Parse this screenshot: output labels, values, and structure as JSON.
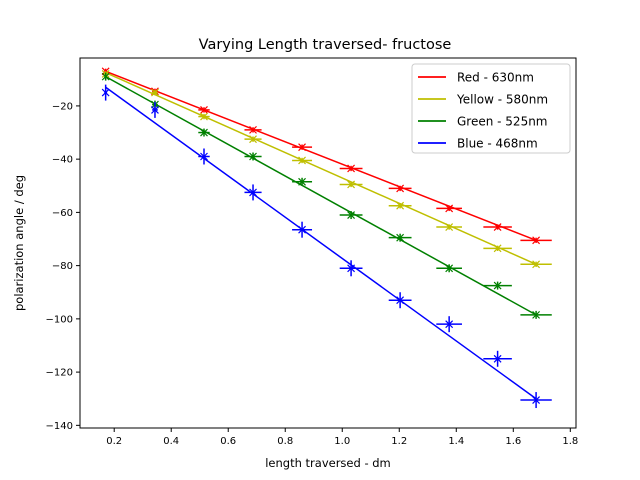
{
  "chart_data": {
    "type": "line",
    "title": "Varying Length traversed- fructose",
    "xlabel": "length traversed - dm",
    "ylabel": "polarization angle / deg",
    "xlim": [
      0.08,
      1.82
    ],
    "ylim": [
      -141,
      -2
    ],
    "xticks": [
      0.2,
      0.4,
      0.6,
      0.8,
      1.0,
      1.2,
      1.4,
      1.6,
      1.8
    ],
    "xtick_labels": [
      "0.2",
      "0.4",
      "0.6",
      "0.8",
      "1.0",
      "1.2",
      "1.4",
      "1.6",
      "1.8"
    ],
    "yticks": [
      -20,
      -40,
      -60,
      -80,
      -100,
      -120,
      -140
    ],
    "ytick_labels": [
      "−20",
      "−40",
      "−60",
      "−80",
      "−100",
      "−120",
      "−140"
    ],
    "legend_position": "top-right",
    "grid": false,
    "x": [
      0.17,
      0.343,
      0.515,
      0.687,
      0.859,
      1.031,
      1.203,
      1.375,
      1.545,
      1.68
    ],
    "series": [
      {
        "name": "Red - 630nm",
        "color": "#ff0000",
        "fit": [
          [
            0.17,
            -7
          ],
          [
            1.68,
            -70.5
          ]
        ],
        "y": [
          -7,
          -14.5,
          -21.5,
          -29,
          -35.5,
          -43.5,
          -51,
          -58.5,
          -65.5,
          -70.5
        ],
        "xerr": [
          0.005,
          0.01,
          0.02,
          0.03,
          0.035,
          0.04,
          0.04,
          0.045,
          0.05,
          0.055
        ],
        "yerr": [
          1,
          1,
          1,
          1,
          1,
          1,
          1,
          1,
          1,
          1
        ]
      },
      {
        "name": "Yellow - 580nm",
        "color": "#bfbf00",
        "fit": [
          [
            0.17,
            -7.5
          ],
          [
            1.68,
            -79.5
          ]
        ],
        "y": [
          -8,
          -15,
          -24,
          -32.5,
          -40.5,
          -49.5,
          -57.5,
          -65.5,
          -73.5,
          -79.5
        ],
        "xerr": [
          0.005,
          0.01,
          0.02,
          0.03,
          0.035,
          0.04,
          0.04,
          0.045,
          0.05,
          0.055
        ],
        "yerr": [
          1,
          1,
          1,
          1,
          1,
          1,
          1,
          1,
          1,
          1
        ]
      },
      {
        "name": "Green - 525nm",
        "color": "#008000",
        "fit": [
          [
            0.17,
            -9
          ],
          [
            1.68,
            -98.5
          ]
        ],
        "y": [
          -9,
          -19.5,
          -30,
          -39,
          -48.5,
          -61,
          -69.5,
          -81,
          -87.5,
          -98.5
        ],
        "xerr": [
          0.005,
          0.01,
          0.02,
          0.03,
          0.035,
          0.04,
          0.04,
          0.045,
          0.05,
          0.055
        ],
        "yerr": [
          1.5,
          1.5,
          1.5,
          1.5,
          1.5,
          1.5,
          1.5,
          1.5,
          1.5,
          1.5
        ]
      },
      {
        "name": "Blue - 468nm",
        "color": "#0000ff",
        "fit": [
          [
            0.17,
            -13
          ],
          [
            1.68,
            -130
          ]
        ],
        "y": [
          -15,
          -21.5,
          -39,
          -52.5,
          -66.5,
          -81,
          -93,
          -102,
          -115,
          -130.5
        ],
        "xerr": [
          0.005,
          0.01,
          0.02,
          0.03,
          0.035,
          0.04,
          0.04,
          0.045,
          0.05,
          0.055
        ],
        "yerr": [
          3,
          3,
          3,
          3,
          3,
          3,
          3,
          3,
          3,
          3
        ]
      }
    ]
  }
}
